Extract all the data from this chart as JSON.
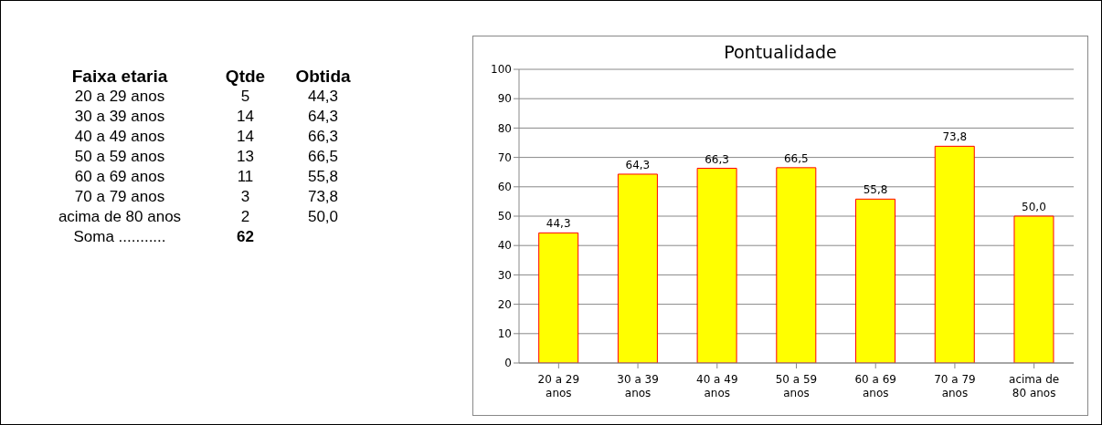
{
  "chart_data": [
    {
      "type": "other",
      "annotations": [
        "Faixa etaria",
        "Qtde",
        "Obtida",
        "20 a 29 anos",
        "5",
        "44,3",
        "30 a 39 anos",
        "14",
        "64,3",
        "40 a 49 anos",
        "14",
        "66,3",
        "50 a 59 anos",
        "13",
        "66,5",
        "60 a 69 anos",
        "11",
        "55,8",
        "70 a 79 anos",
        "3",
        "73,8",
        "acima de 80 anos",
        "2",
        "50,0",
        "Soma ...........",
        "62"
      ]
    },
    {
      "type": "bar",
      "title": "Pontualidade",
      "categories": [
        "20 a 29 anos",
        "30 a 39 anos",
        "40 a 49 anos",
        "50 a 59 anos",
        "60 a 69 anos",
        "70 a 79 anos",
        "acima de 80 anos"
      ],
      "values": [
        44.3,
        64.3,
        66.3,
        66.5,
        55.8,
        73.8,
        50.0
      ],
      "value_labels": [
        "44,3",
        "64,3",
        "66,3",
        "66,5",
        "55,8",
        "73,8",
        "50,0"
      ],
      "color": "#ffff00",
      "ylim": [
        0,
        100
      ],
      "yticks": [
        0,
        10,
        20,
        30,
        40,
        50,
        60,
        70,
        80,
        90,
        100
      ],
      "grid": "y"
    }
  ]
}
